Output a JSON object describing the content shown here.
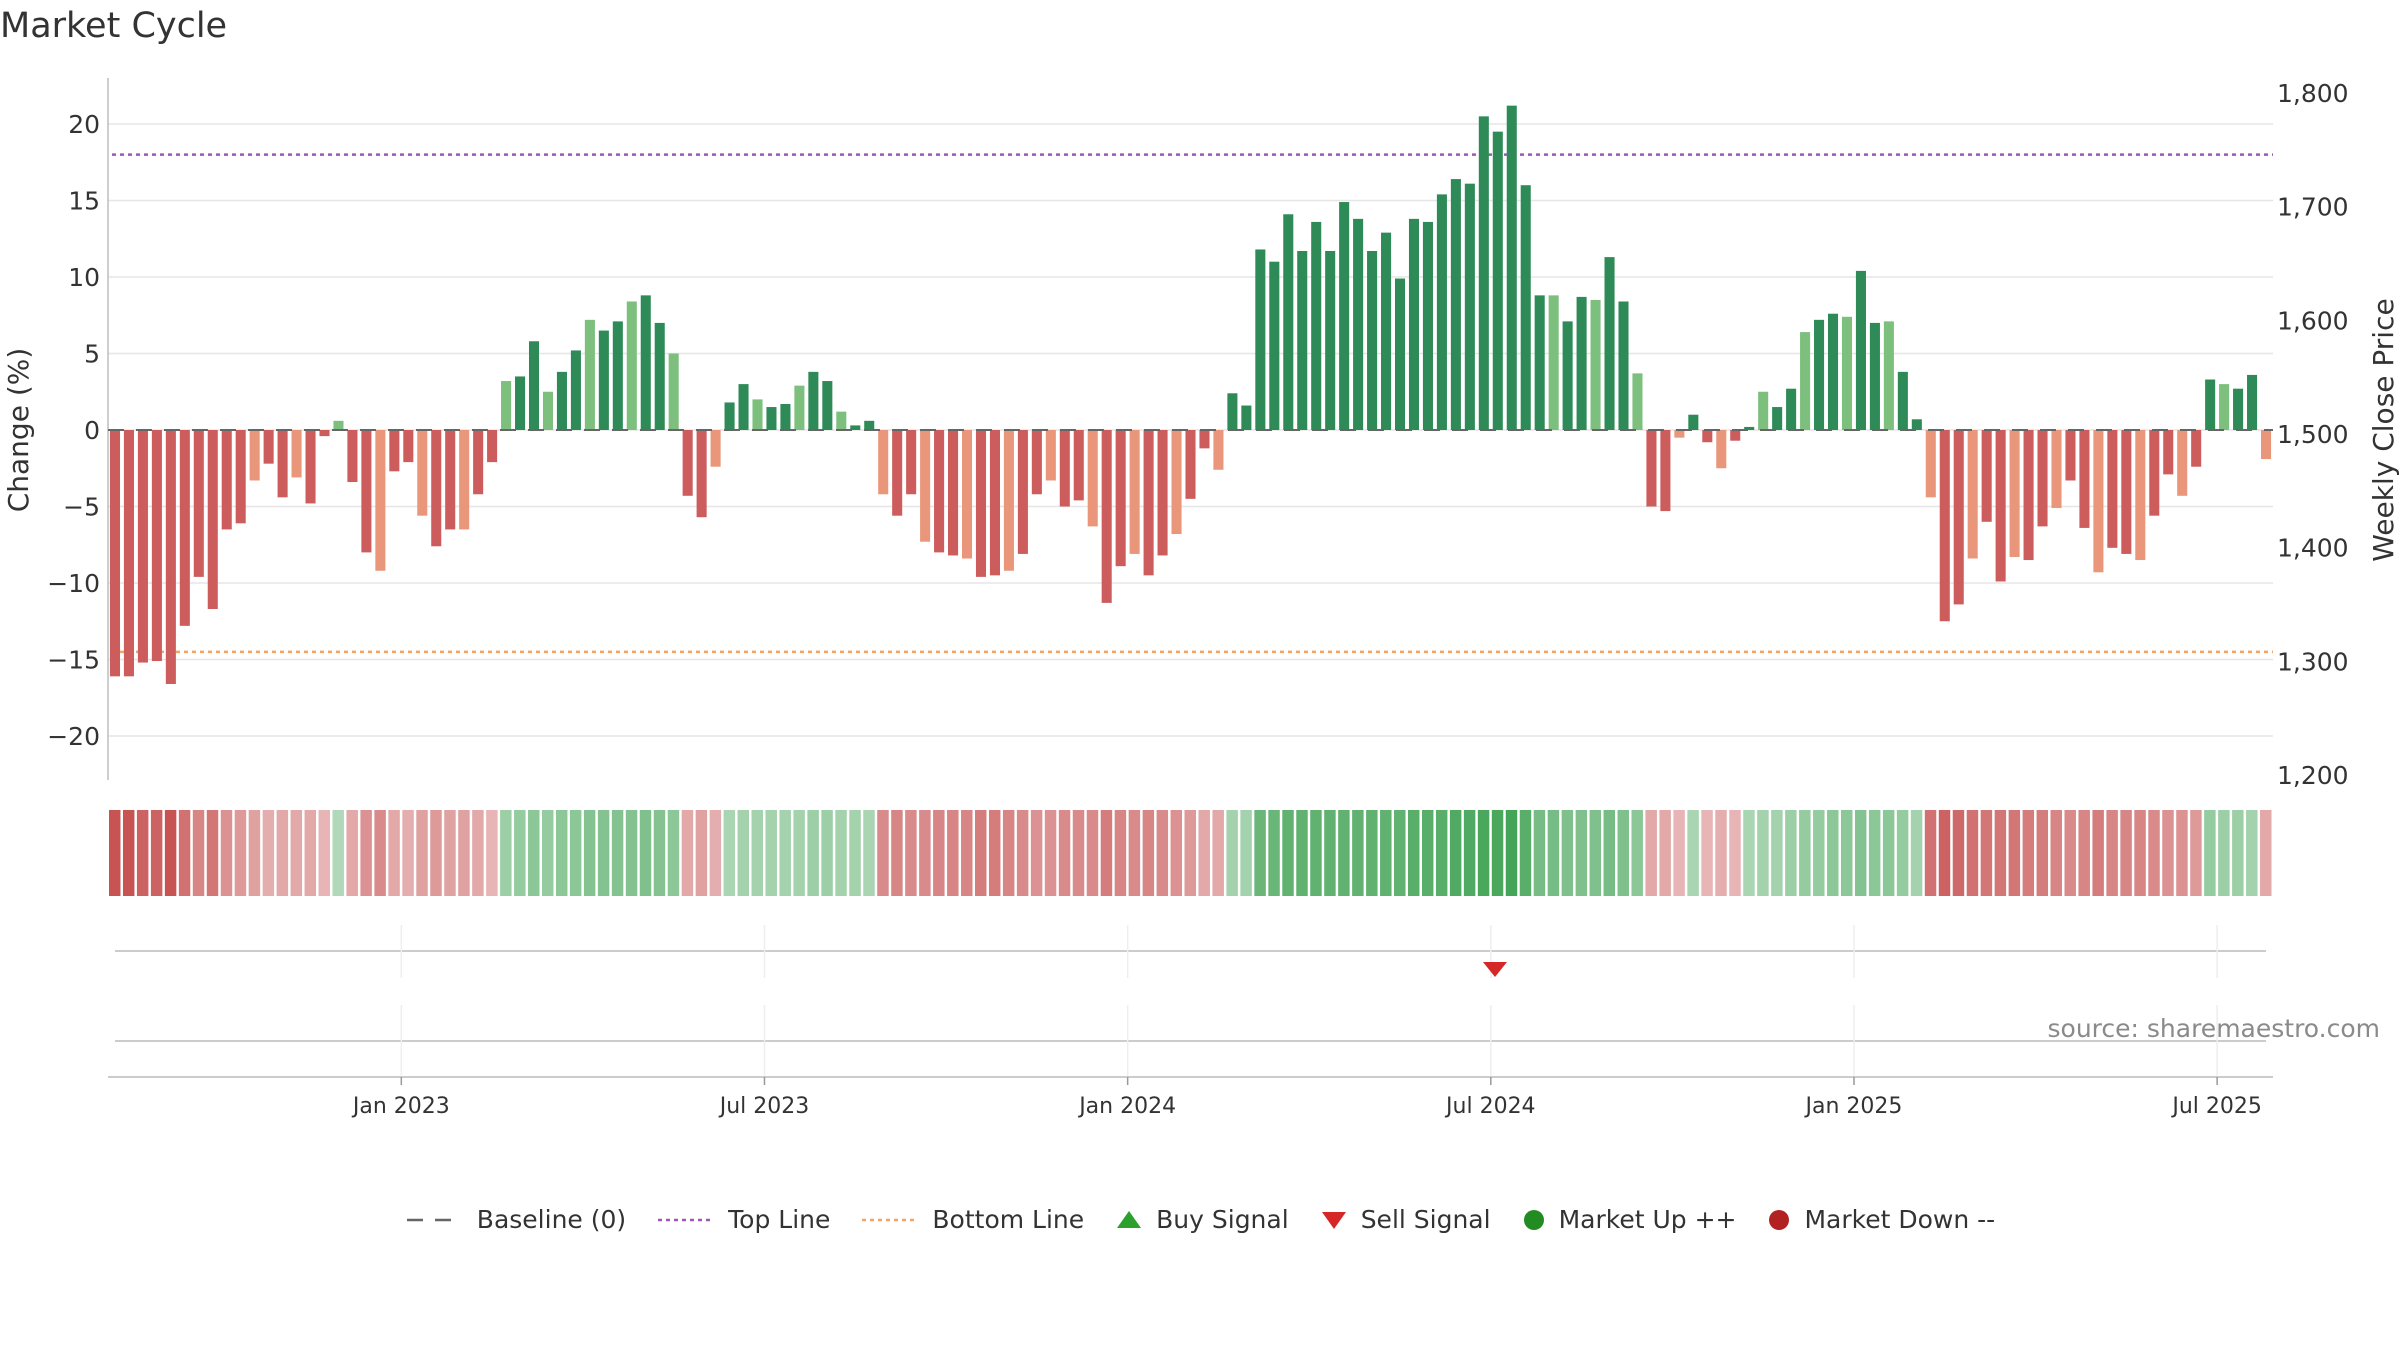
{
  "title": "Market Cycle",
  "source": "source: sharemaestro.com",
  "legend": {
    "baseline": "Baseline (0)",
    "top_line": "Top Line",
    "bottom_line": "Bottom Line",
    "buy_signal": "Buy Signal",
    "sell_signal": "Sell Signal",
    "market_up": "Market Up ++",
    "market_down": "Market Down --"
  },
  "colors": {
    "up_strong": "#2e8b57",
    "up_light": "#7dbf7d",
    "down_strong": "#cd5c5c",
    "down_light": "#e9967a",
    "top_line": "#9b59b6",
    "bottom_line": "#f4a460",
    "sell_signal": "#d62728",
    "buy_signal": "#2ca02c",
    "market_up": "#228b22",
    "market_down": "#b22222",
    "baseline": "#666666"
  },
  "chart_data": {
    "type": "bar",
    "title": "Market Cycle",
    "ylabel": "Change (%)",
    "y2label": "Weekly Close Price",
    "ylim": [
      -23,
      23
    ],
    "y_ticks": [
      20,
      15,
      10,
      5,
      0,
      -5,
      -10,
      -15,
      -20
    ],
    "y_tick_labels": [
      "20",
      "15",
      "10",
      "5",
      "0",
      "−5",
      "−10",
      "−15",
      "−20"
    ],
    "y2lim": [
      1200,
      1800
    ],
    "y2_ticks": [
      1800,
      1700,
      1600,
      1500,
      1400,
      1300,
      1200
    ],
    "y2_tick_labels": [
      "1,800",
      "1,700",
      "1,600",
      "1,500",
      "1,400",
      "1,300",
      "1,200"
    ],
    "x_ticks": [
      "Jan 2023",
      "Jul 2023",
      "Jan 2024",
      "Jul 2024",
      "Jan 2025",
      "Jul 2025"
    ],
    "top_line": 18,
    "bottom_line": -14.5,
    "baseline": 0,
    "grid": true,
    "legend_position": "bottom",
    "values": [
      -16.1,
      -16.1,
      -15.2,
      -15.1,
      -16.6,
      -12.8,
      -9.6,
      -11.7,
      -6.5,
      -6.1,
      -3.3,
      -2.2,
      -4.4,
      -3.1,
      -4.8,
      -0.4,
      0.6,
      -3.4,
      -8.0,
      -9.2,
      -2.7,
      -2.1,
      -5.6,
      -7.6,
      -6.5,
      -6.5,
      -4.2,
      -2.1,
      3.2,
      3.5,
      5.8,
      2.5,
      3.8,
      5.2,
      7.2,
      6.5,
      7.1,
      8.4,
      8.8,
      7.0,
      5.0,
      -4.3,
      -5.7,
      -2.4,
      1.8,
      3.0,
      2.0,
      1.5,
      1.7,
      2.9,
      3.8,
      3.2,
      1.2,
      0.3,
      0.6,
      -4.2,
      -5.6,
      -4.2,
      -7.3,
      -8.0,
      -8.2,
      -8.4,
      -9.6,
      -9.5,
      -9.2,
      -8.1,
      -4.2,
      -3.3,
      -5.0,
      -4.6,
      -6.3,
      -11.3,
      -8.9,
      -8.1,
      -9.5,
      -8.2,
      -6.8,
      -4.5,
      -1.2,
      -2.6,
      2.4,
      1.6,
      11.8,
      11.0,
      14.1,
      11.7,
      13.6,
      11.7,
      14.9,
      13.8,
      11.7,
      12.9,
      9.9,
      13.8,
      13.6,
      15.4,
      16.4,
      16.1,
      20.5,
      19.5,
      21.2,
      16.0,
      8.8,
      8.8,
      7.1,
      8.7,
      8.5,
      11.3,
      8.4,
      3.7,
      -5.0,
      -5.3,
      -0.5,
      1.0,
      -0.8,
      -2.5,
      -0.7,
      0.2,
      2.5,
      1.5,
      2.7,
      6.4,
      7.2,
      7.6,
      7.4,
      10.4,
      7.0,
      7.1,
      3.8,
      0.7,
      -4.4,
      -12.5,
      -11.4,
      -8.4,
      -6.0,
      -9.9,
      -8.3,
      -8.5,
      -6.3,
      -5.1,
      -3.3,
      -6.4,
      -9.3,
      -7.7,
      -8.1,
      -8.5,
      -5.6,
      -2.9,
      -4.3,
      -2.4,
      3.3,
      3.0,
      2.7,
      3.6,
      -1.9
    ],
    "intensity": [
      0.9,
      0.9,
      0.8,
      0.8,
      0.9,
      0.7,
      0.55,
      0.65,
      0.45,
      0.4,
      0.35,
      0.25,
      0.3,
      0.3,
      0.3,
      0.2,
      0.2,
      0.3,
      0.45,
      0.5,
      0.3,
      0.25,
      0.35,
      0.4,
      0.35,
      0.35,
      0.3,
      0.2,
      0.35,
      0.4,
      0.45,
      0.4,
      0.45,
      0.45,
      0.5,
      0.5,
      0.5,
      0.5,
      0.55,
      0.5,
      0.45,
      0.3,
      0.35,
      0.25,
      0.25,
      0.3,
      0.3,
      0.3,
      0.3,
      0.3,
      0.35,
      0.35,
      0.3,
      0.3,
      0.25,
      0.5,
      0.55,
      0.5,
      0.5,
      0.55,
      0.55,
      0.55,
      0.6,
      0.6,
      0.55,
      0.5,
      0.45,
      0.45,
      0.5,
      0.5,
      0.5,
      0.6,
      0.55,
      0.5,
      0.55,
      0.5,
      0.45,
      0.4,
      0.3,
      0.3,
      0.3,
      0.3,
      0.7,
      0.7,
      0.75,
      0.75,
      0.75,
      0.75,
      0.75,
      0.75,
      0.75,
      0.75,
      0.75,
      0.8,
      0.8,
      0.8,
      0.85,
      0.85,
      0.9,
      0.9,
      0.95,
      0.8,
      0.6,
      0.6,
      0.55,
      0.55,
      0.55,
      0.6,
      0.55,
      0.45,
      0.3,
      0.3,
      0.2,
      0.25,
      0.2,
      0.25,
      0.2,
      0.25,
      0.3,
      0.3,
      0.35,
      0.4,
      0.4,
      0.45,
      0.45,
      0.5,
      0.45,
      0.45,
      0.4,
      0.3,
      0.7,
      0.8,
      0.75,
      0.7,
      0.65,
      0.65,
      0.65,
      0.6,
      0.6,
      0.55,
      0.5,
      0.55,
      0.6,
      0.55,
      0.55,
      0.55,
      0.5,
      0.45,
      0.45,
      0.4,
      0.4,
      0.35,
      0.35,
      0.3,
      0.3
    ],
    "sell_signals": [
      99
    ],
    "buy_signals": []
  }
}
